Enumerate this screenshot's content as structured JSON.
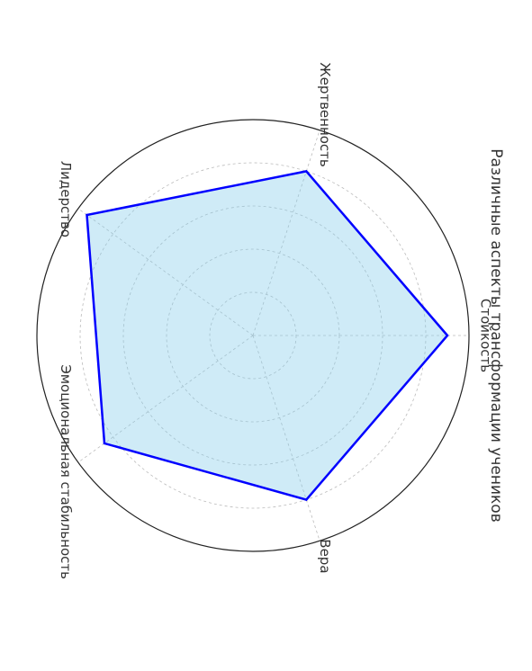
{
  "chart_data": {
    "type": "radar",
    "title": "Различные аспекты трансформации учеников",
    "categories": [
      "Стойкость",
      "Жертвенность",
      "Лидерство",
      "Эмоциональная стабильность",
      "Вера"
    ],
    "values": [
      9,
      8,
      9.5,
      8.5,
      8
    ],
    "rlim": [
      0,
      10
    ],
    "grid": true,
    "colors": {
      "line": "#0000ff",
      "fill": "#87ceeb",
      "grid": "#bbbbbb",
      "outer": "#222222"
    }
  }
}
